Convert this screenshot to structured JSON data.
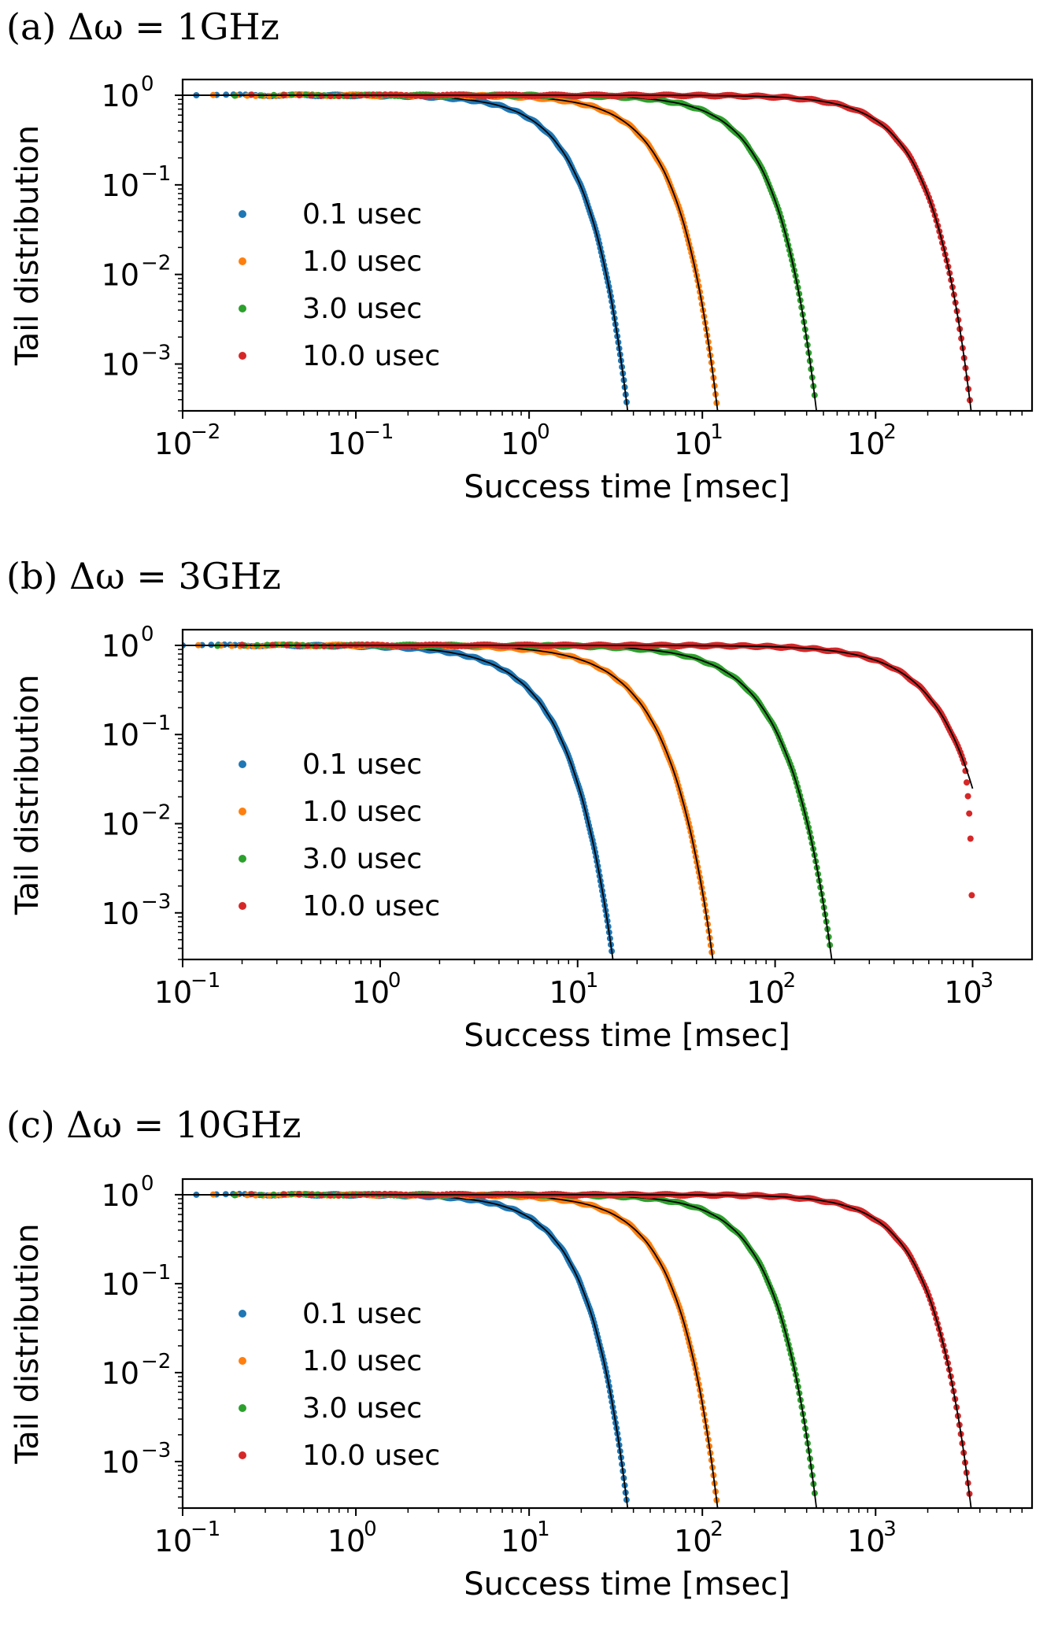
{
  "colors": {
    "0.1 usec": "#1f77b4",
    "1.0 usec": "#ff7f0e",
    "3.0 usec": "#2ca02c",
    "10.0 usec": "#d62728",
    "fit": "#000000"
  },
  "chart_data": [
    {
      "panel": "a",
      "title": "(a) Δω = 1GHz",
      "type": "scatter",
      "xscale": "log",
      "yscale": "log",
      "xlabel": "Success time [msec]",
      "ylabel": "Tail distribution",
      "xlim": [
        0.01,
        800
      ],
      "ylim": [
        0.0003,
        1.5
      ],
      "x_tick_labels": [
        "10",
        "10",
        "10",
        "10",
        "10"
      ],
      "x_tick_exponents": [
        "−2",
        "−1",
        "0",
        "1",
        "2"
      ],
      "x_tick_values": [
        0.01,
        0.1,
        1,
        10,
        100
      ],
      "y_tick_labels": [
        "10",
        "10",
        "10",
        "10"
      ],
      "y_tick_exponents": [
        "0",
        "−1",
        "−2",
        "−3"
      ],
      "y_tick_values": [
        1,
        0.1,
        0.01,
        0.001
      ],
      "legend_position": "center-left",
      "series": [
        {
          "name": "0.1 usec",
          "scale": 1.3,
          "shape": 2,
          "xmin": 0.012,
          "xmax": 7.5,
          "fit_end": 7.6
        },
        {
          "name": "1.0 usec",
          "scale": 4.3,
          "shape": 2,
          "xmin": 0.015,
          "xmax": 24,
          "fit_end": 25
        },
        {
          "name": "3.0 usec",
          "scale": 16,
          "shape": 2,
          "xmin": 0.02,
          "xmax": 93,
          "fit_end": 97
        },
        {
          "name": "10.0 usec",
          "scale": 125,
          "shape": 2,
          "xmin": 0.025,
          "xmax": 770,
          "fit_end": 780
        }
      ]
    },
    {
      "panel": "b",
      "title": "(b) Δω = 3GHz",
      "type": "scatter",
      "xscale": "log",
      "yscale": "log",
      "xlabel": "Success time [msec]",
      "ylabel": "Tail distribution",
      "xlim": [
        0.1,
        2000
      ],
      "ylim": [
        0.0003,
        1.5
      ],
      "x_tick_labels": [
        "10",
        "10",
        "10",
        "10",
        "10"
      ],
      "x_tick_exponents": [
        "−1",
        "0",
        "1",
        "2",
        "3"
      ],
      "x_tick_values": [
        0.1,
        1,
        10,
        100,
        1000
      ],
      "y_tick_labels": [
        "10",
        "10",
        "10",
        "10"
      ],
      "y_tick_exponents": [
        "0",
        "−1",
        "−2",
        "−3"
      ],
      "y_tick_values": [
        1,
        0.1,
        0.01,
        0.001
      ],
      "legend_position": "center-left",
      "series": [
        {
          "name": "0.1 usec",
          "scale": 5.3,
          "shape": 2,
          "xmin": 0.1,
          "xmax": 23,
          "fit_end": 24
        },
        {
          "name": "1.0 usec",
          "scale": 17,
          "shape": 2,
          "xmin": 0.12,
          "xmax": 70,
          "fit_end": 76
        },
        {
          "name": "3.0 usec",
          "scale": 68,
          "shape": 2,
          "xmin": 0.15,
          "xmax": 290,
          "fit_end": 298
        },
        {
          "name": "10.0 usec",
          "scale": 520,
          "shape": 2,
          "xmin": 0.2,
          "xmax": 990,
          "fit_end": 1000,
          "truncated": true
        }
      ]
    },
    {
      "panel": "c",
      "title": "(c) Δω = 10GHz",
      "type": "scatter",
      "xscale": "log",
      "yscale": "log",
      "xlabel": "Success time [msec]",
      "ylabel": "Tail distribution",
      "xlim": [
        0.1,
        8000
      ],
      "ylim": [
        0.0003,
        1.5
      ],
      "x_tick_labels": [
        "10",
        "10",
        "10",
        "10",
        "10"
      ],
      "x_tick_exponents": [
        "−1",
        "0",
        "1",
        "2",
        "3"
      ],
      "x_tick_values": [
        0.1,
        1,
        10,
        100,
        1000
      ],
      "y_tick_labels": [
        "10",
        "10",
        "10",
        "10"
      ],
      "y_tick_exponents": [
        "0",
        "−1",
        "−2",
        "−3"
      ],
      "y_tick_values": [
        1,
        0.1,
        0.01,
        0.001
      ],
      "legend_position": "center-left",
      "series": [
        {
          "name": "0.1 usec",
          "scale": 13,
          "shape": 2,
          "xmin": 0.12,
          "xmax": 70,
          "fit_end": 76
        },
        {
          "name": "1.0 usec",
          "scale": 43,
          "shape": 2,
          "xmin": 0.15,
          "xmax": 240,
          "fit_end": 250
        },
        {
          "name": "3.0 usec",
          "scale": 160,
          "shape": 2,
          "xmin": 0.2,
          "xmax": 900,
          "fit_end": 970
        },
        {
          "name": "10.0 usec",
          "scale": 1250,
          "shape": 2,
          "xmin": 0.25,
          "xmax": 7500,
          "fit_end": 7800
        }
      ]
    }
  ]
}
